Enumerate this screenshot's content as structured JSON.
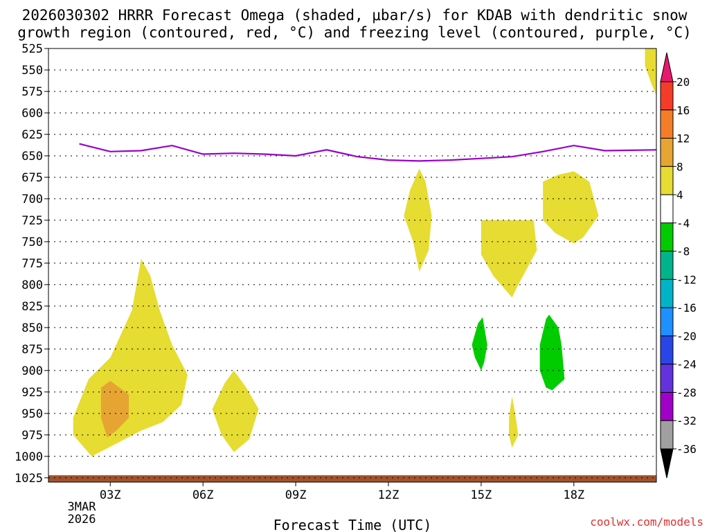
{
  "chart_data": {
    "type": "filled-contour",
    "title_line1": "2026030302 HRRR Forecast Omega (shaded, μbar/s) for KDAB with dendritic snow",
    "title_line2": "growth region (contoured, red, °C) and freezing level (contoured, purple, °C)",
    "xlabel": "Forecast Time (UTC)",
    "watermark": "coolwx.com/models",
    "date_label": [
      "3MAR",
      "2026"
    ],
    "x_range": [
      1.0,
      20.67
    ],
    "y_range": [
      525,
      1030
    ],
    "x_ticks": [
      {
        "x": 3,
        "label": "03Z"
      },
      {
        "x": 6,
        "label": "06Z"
      },
      {
        "x": 9,
        "label": "09Z"
      },
      {
        "x": 12,
        "label": "12Z"
      },
      {
        "x": 15,
        "label": "15Z"
      },
      {
        "x": 18,
        "label": "18Z"
      }
    ],
    "y_ticks": [
      525,
      550,
      575,
      600,
      625,
      650,
      675,
      700,
      725,
      750,
      775,
      800,
      825,
      850,
      875,
      900,
      925,
      950,
      975,
      1000,
      1025
    ],
    "freezing_level": {
      "color": "#9900cc",
      "points": [
        [
          2.0,
          636
        ],
        [
          3.0,
          645
        ],
        [
          4.0,
          644
        ],
        [
          5.0,
          638
        ],
        [
          6.0,
          648
        ],
        [
          7.0,
          647
        ],
        [
          8.0,
          648
        ],
        [
          9.0,
          650
        ],
        [
          10.0,
          643
        ],
        [
          11.0,
          651
        ],
        [
          12.0,
          655
        ],
        [
          13.0,
          656
        ],
        [
          14.0,
          655
        ],
        [
          15.0,
          653
        ],
        [
          16.0,
          651
        ],
        [
          17.0,
          645
        ],
        [
          18.0,
          638
        ],
        [
          19.0,
          644
        ],
        [
          20.67,
          643
        ]
      ]
    },
    "omega_regions": [
      {
        "value_band": "4 to 8",
        "color": "#e6dc32",
        "points": [
          [
            1.8,
            955
          ],
          [
            2.3,
            910
          ],
          [
            3.0,
            885
          ],
          [
            3.7,
            830
          ],
          [
            4.0,
            770
          ],
          [
            4.3,
            790
          ],
          [
            4.6,
            830
          ],
          [
            5.0,
            870
          ],
          [
            5.5,
            905
          ],
          [
            5.3,
            940
          ],
          [
            4.7,
            960
          ],
          [
            4.0,
            970
          ],
          [
            3.2,
            985
          ],
          [
            2.4,
            1000
          ],
          [
            1.8,
            975
          ]
        ]
      },
      {
        "value_band": "8 to 12",
        "color": "#e6a532",
        "points": [
          [
            2.7,
            920
          ],
          [
            3.0,
            912
          ],
          [
            3.6,
            928
          ],
          [
            3.6,
            955
          ],
          [
            3.2,
            970
          ],
          [
            2.9,
            978
          ],
          [
            2.7,
            955
          ]
        ]
      },
      {
        "value_band": "4 to 8",
        "color": "#e6dc32",
        "points": [
          [
            6.3,
            945
          ],
          [
            6.7,
            915
          ],
          [
            7.0,
            900
          ],
          [
            7.4,
            920
          ],
          [
            7.8,
            945
          ],
          [
            7.5,
            980
          ],
          [
            7.0,
            995
          ],
          [
            6.6,
            975
          ]
        ]
      },
      {
        "value_band": "4 to 8",
        "color": "#e6dc32",
        "points": [
          [
            12.5,
            720
          ],
          [
            12.7,
            690
          ],
          [
            13.0,
            665
          ],
          [
            13.2,
            680
          ],
          [
            13.4,
            720
          ],
          [
            13.3,
            760
          ],
          [
            13.0,
            785
          ],
          [
            12.8,
            750
          ]
        ]
      },
      {
        "value_band": "4 to 8",
        "color": "#e6dc32",
        "points": [
          [
            15.0,
            725
          ],
          [
            16.7,
            725
          ],
          [
            16.8,
            760
          ],
          [
            16.2,
            800
          ],
          [
            16.0,
            815
          ],
          [
            15.4,
            790
          ],
          [
            15.0,
            765
          ]
        ]
      },
      {
        "value_band": "4 to 8",
        "color": "#e6dc32",
        "points": [
          [
            17.0,
            680
          ],
          [
            17.5,
            672
          ],
          [
            18.0,
            668
          ],
          [
            18.5,
            680
          ],
          [
            18.8,
            720
          ],
          [
            18.3,
            745
          ],
          [
            18.0,
            752
          ],
          [
            17.4,
            740
          ],
          [
            17.0,
            725
          ]
        ]
      },
      {
        "value_band": "4 to 8",
        "color": "#e6dc32",
        "points": [
          [
            15.9,
            955
          ],
          [
            16.0,
            930
          ],
          [
            16.1,
            950
          ],
          [
            16.2,
            975
          ],
          [
            16.0,
            990
          ],
          [
            15.9,
            975
          ]
        ]
      },
      {
        "value_band": "4 to 8",
        "color": "#e6dc32",
        "points": [
          [
            20.3,
            525
          ],
          [
            20.67,
            525
          ],
          [
            20.67,
            580
          ],
          [
            20.5,
            565
          ],
          [
            20.3,
            545
          ]
        ]
      },
      {
        "value_band": "-4 to -8",
        "color": "#00cc00",
        "points": [
          [
            14.7,
            870
          ],
          [
            14.9,
            845
          ],
          [
            15.05,
            838
          ],
          [
            15.2,
            870
          ],
          [
            15.1,
            890
          ],
          [
            15.0,
            900
          ],
          [
            14.8,
            885
          ]
        ]
      },
      {
        "value_band": "-4 to -8",
        "color": "#00cc00",
        "points": [
          [
            16.9,
            870
          ],
          [
            17.1,
            840
          ],
          [
            17.2,
            835
          ],
          [
            17.5,
            850
          ],
          [
            17.6,
            870
          ],
          [
            17.7,
            910
          ],
          [
            17.3,
            923
          ],
          [
            17.1,
            920
          ],
          [
            16.9,
            900
          ]
        ]
      }
    ],
    "ground": {
      "color": "#a0522d",
      "level": 1022
    },
    "colorbar": {
      "labels": [
        "20",
        "16",
        "12",
        "8",
        "4",
        "-4",
        "-8",
        "-12",
        "-16",
        "-20",
        "-24",
        "-28",
        "-32",
        "-36"
      ],
      "segments": [
        {
          "color": "#e6196e"
        },
        {
          "color": "#f53c28"
        },
        {
          "color": "#f57d28"
        },
        {
          "color": "#e6a532"
        },
        {
          "color": "#e6dc32"
        },
        {
          "color": "#ffffff"
        },
        {
          "color": "#00cc00"
        },
        {
          "color": "#00b48c"
        },
        {
          "color": "#00b4c8"
        },
        {
          "color": "#1e90ff"
        },
        {
          "color": "#2846e6"
        },
        {
          "color": "#6432dc"
        },
        {
          "color": "#a000c8"
        },
        {
          "color": "#a0a0a0"
        },
        {
          "color": "#000000"
        }
      ]
    }
  }
}
